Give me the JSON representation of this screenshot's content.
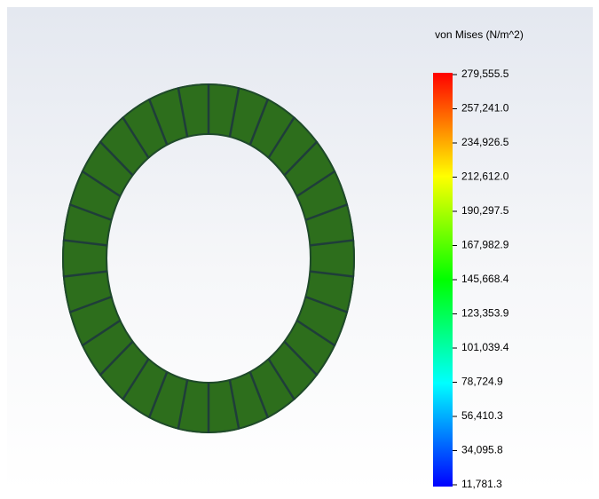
{
  "legend": {
    "title": "von Mises (N/m^2)",
    "ticks": [
      {
        "value": 279555.5,
        "label": "279,555.5"
      },
      {
        "value": 257241.0,
        "label": "257,241.0"
      },
      {
        "value": 234926.5,
        "label": "234,926.5"
      },
      {
        "value": 212612.0,
        "label": "212,612.0"
      },
      {
        "value": 190297.5,
        "label": "190,297.5"
      },
      {
        "value": 167982.9,
        "label": "167,982.9"
      },
      {
        "value": 145668.4,
        "label": "145,668.4"
      },
      {
        "value": 123353.9,
        "label": "123,353.9"
      },
      {
        "value": 101039.4,
        "label": "101,039.4"
      },
      {
        "value": 78724.9,
        "label": "78,724.9"
      },
      {
        "value": 56410.3,
        "label": "56,410.3"
      },
      {
        "value": 34095.8,
        "label": "34,095.8"
      },
      {
        "value": 11781.3,
        "label": "11,781.3"
      }
    ]
  }
}
